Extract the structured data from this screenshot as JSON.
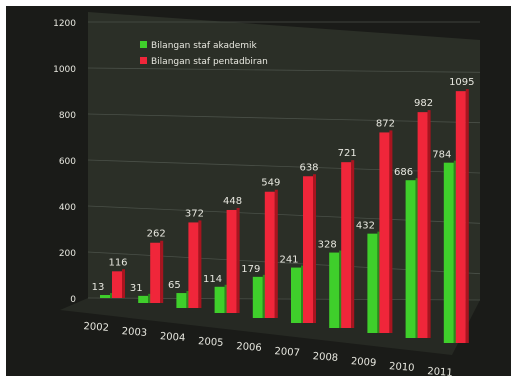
{
  "chart_data": {
    "type": "bar",
    "categories": [
      "2002",
      "2003",
      "2004",
      "2005",
      "2006",
      "2007",
      "2008",
      "2009",
      "2010",
      "2011"
    ],
    "series": [
      {
        "name": "Bilangan staf akademik",
        "values": [
          13,
          31,
          65,
          114,
          179,
          241,
          328,
          432,
          686,
          784
        ],
        "color": "#3fcf2b"
      },
      {
        "name": "Bilangan staf pentadbiran",
        "values": [
          116,
          262,
          372,
          448,
          549,
          638,
          721,
          872,
          982,
          1095
        ],
        "color": "#f0263a"
      }
    ],
    "ylim": [
      0,
      1200
    ],
    "y_ticks": [
      "0",
      "200",
      "400",
      "600",
      "800",
      "1000",
      "1200"
    ],
    "title": "",
    "xlabel": "",
    "ylabel": "",
    "grid": true,
    "legend_position": "top-left"
  },
  "colors": {
    "background": "#1c1d1a",
    "wall": "#2d3129",
    "gridline": "#4a5048",
    "text": "#e8e8e0"
  }
}
